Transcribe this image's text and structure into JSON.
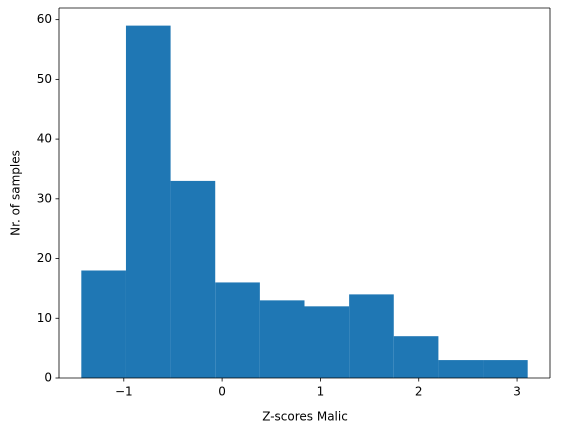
{
  "chart_data": {
    "type": "histogram",
    "x_label": "Z-scores Malic",
    "y_label": "Nr. of samples",
    "bins": [
      -1.432,
      -0.978,
      -0.524,
      -0.07,
      0.384,
      0.838,
      1.292,
      1.746,
      2.2,
      2.654,
      3.108
    ],
    "values": [
      18,
      59,
      33,
      16,
      13,
      12,
      14,
      7,
      3,
      3
    ],
    "color": "#1f77b4",
    "xlim": [
      -1.659,
      3.335
    ],
    "ylim": [
      0,
      61.95
    ],
    "xticks": [
      {
        "value": -1,
        "label": "−1"
      },
      0,
      1,
      2,
      3
    ],
    "yticks": [
      0,
      10,
      20,
      30,
      40,
      50,
      60
    ],
    "grid": false
  }
}
